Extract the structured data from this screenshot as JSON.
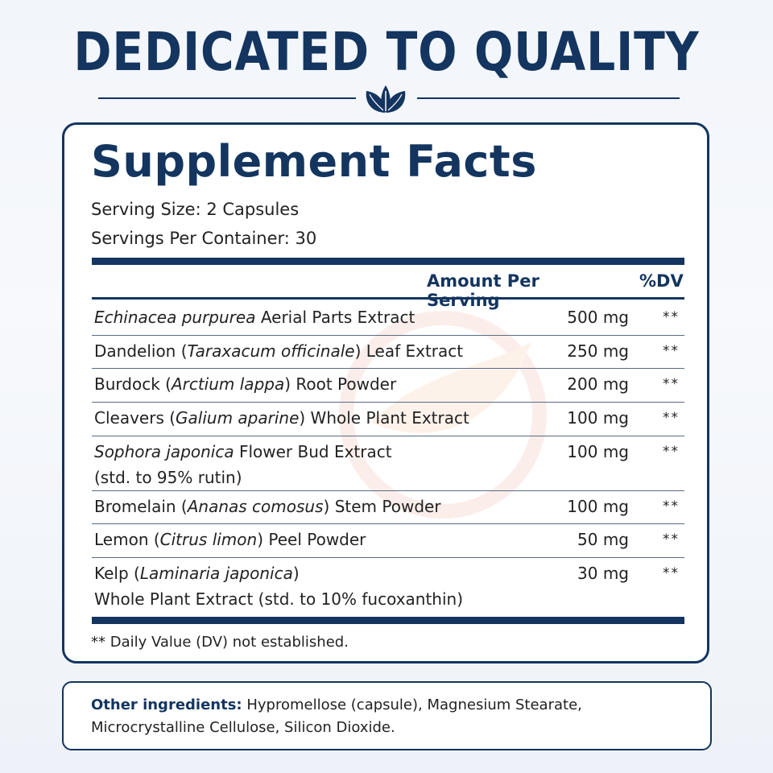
{
  "header": {
    "title": "DEDICATED TO QUALITY",
    "divider_icon": "leaf-icon",
    "accent_color": "#13355f"
  },
  "facts": {
    "title": "Supplement Facts",
    "serving_size": "Serving Size: 2 Capsules",
    "servings_per_container": "Servings Per Container: 30",
    "column_amount": "Amount Per Serving",
    "column_dv": "%DV",
    "rows": [
      {
        "name_parts": [
          {
            "text": "Echinacea purpurea",
            "italic": true
          },
          {
            "text": " Aerial Parts Extract",
            "italic": false
          }
        ],
        "amount": "500 mg",
        "dv": "**"
      },
      {
        "name_parts": [
          {
            "text": "Dandelion (",
            "italic": false
          },
          {
            "text": "Taraxacum officinale",
            "italic": true
          },
          {
            "text": ") Leaf Extract",
            "italic": false
          }
        ],
        "amount": "250 mg",
        "dv": "**"
      },
      {
        "name_parts": [
          {
            "text": "Burdock (",
            "italic": false
          },
          {
            "text": "Arctium lappa",
            "italic": true
          },
          {
            "text": ") Root Powder",
            "italic": false
          }
        ],
        "amount": "200 mg",
        "dv": "**"
      },
      {
        "name_parts": [
          {
            "text": "Cleavers (",
            "italic": false
          },
          {
            "text": "Galium aparine",
            "italic": true
          },
          {
            "text": ") Whole Plant Extract",
            "italic": false
          }
        ],
        "amount": "100 mg",
        "dv": "**"
      },
      {
        "name_parts": [
          {
            "text": "Sophora japonica",
            "italic": true
          },
          {
            "text": " Flower Bud Extract",
            "italic": false
          },
          {
            "text": "\n(std. to 95% rutin)",
            "italic": false
          }
        ],
        "amount": "100 mg",
        "dv": "**"
      },
      {
        "name_parts": [
          {
            "text": "Bromelain (",
            "italic": false
          },
          {
            "text": "Ananas comosus",
            "italic": true
          },
          {
            "text": ") Stem Powder",
            "italic": false
          }
        ],
        "amount": "100 mg",
        "dv": "**"
      },
      {
        "name_parts": [
          {
            "text": "Lemon (",
            "italic": false
          },
          {
            "text": "Citrus limon",
            "italic": true
          },
          {
            "text": ") Peel Powder",
            "italic": false
          }
        ],
        "amount": "50 mg",
        "dv": "**"
      },
      {
        "name_parts": [
          {
            "text": "Kelp (",
            "italic": false
          },
          {
            "text": "Laminaria japonica",
            "italic": true
          },
          {
            "text": ")",
            "italic": false
          },
          {
            "text": "\nWhole Plant Extract (std. to 10% fucoxanthin)",
            "italic": false
          }
        ],
        "amount": "30 mg",
        "dv": "**"
      }
    ],
    "footnote": "** Daily Value (DV) not established."
  },
  "other_ingredients": {
    "label": "Other ingredients:",
    "text": " Hypromellose (capsule), Magnesium Stearate, Microcrystalline Cellulose, Silicon Dioxide."
  }
}
